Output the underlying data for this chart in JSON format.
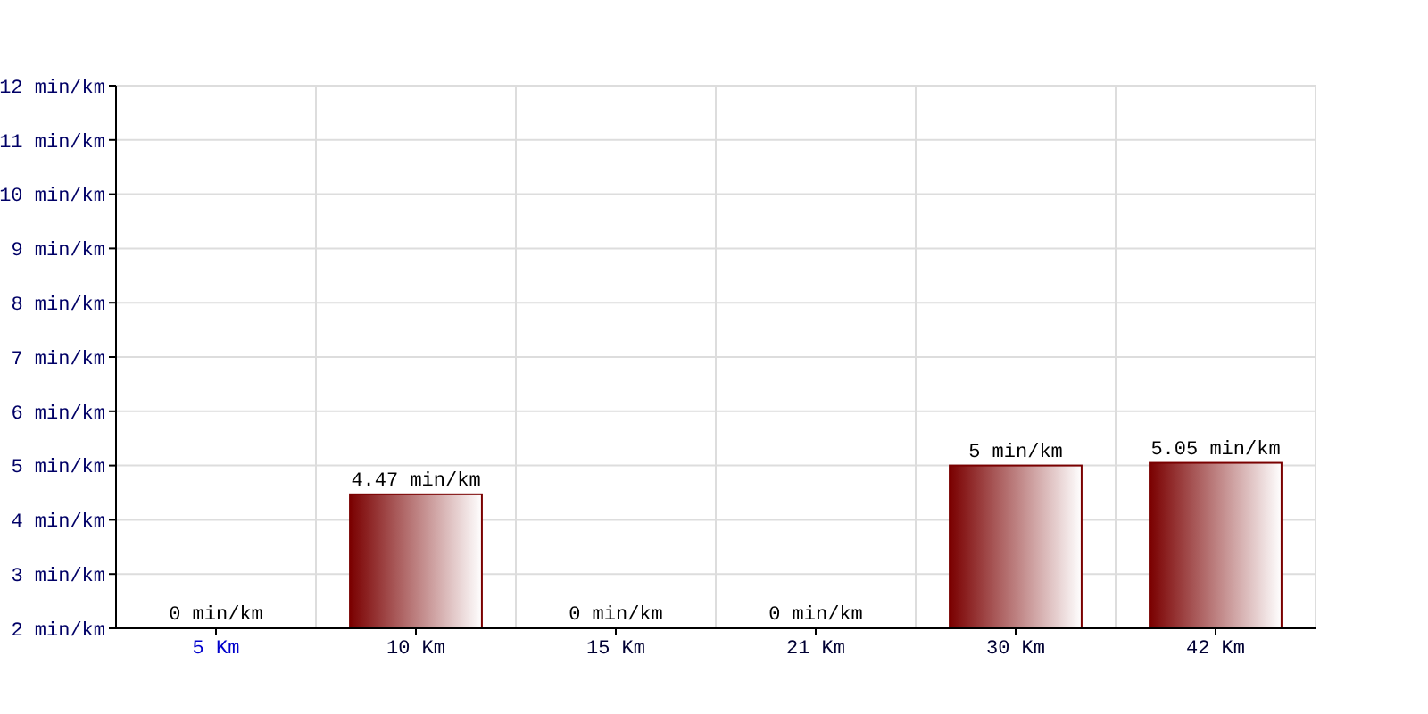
{
  "chart_data": {
    "type": "bar",
    "categories": [
      "5 Km",
      "10 Km",
      "15 Km",
      "21 Km",
      "30 Km",
      "42 Km"
    ],
    "values": [
      null,
      4.47,
      null,
      null,
      5,
      5.05
    ],
    "value_labels": [
      "0 min/km",
      "4.47 min/km",
      "0 min/km",
      "0 min/km",
      "5 min/km",
      "5.05 min/km"
    ],
    "color": "#7a0000",
    "ylim": [
      2,
      12
    ],
    "yticks": [
      {
        "value": 2,
        "label": "2 min/km"
      },
      {
        "value": 3,
        "label": "3 min/km"
      },
      {
        "value": 4,
        "label": "4 min/km"
      },
      {
        "value": 5,
        "label": "5 min/km"
      },
      {
        "value": 6,
        "label": "6 min/km"
      },
      {
        "value": 7,
        "label": "7 min/km"
      },
      {
        "value": 8,
        "label": "8 min/km"
      },
      {
        "value": 9,
        "label": "9 min/km"
      },
      {
        "value": 10,
        "label": "10 min/km"
      },
      {
        "value": 11,
        "label": "11 min/km"
      },
      {
        "value": 12,
        "label": "12 min/km"
      }
    ],
    "grid": true
  }
}
